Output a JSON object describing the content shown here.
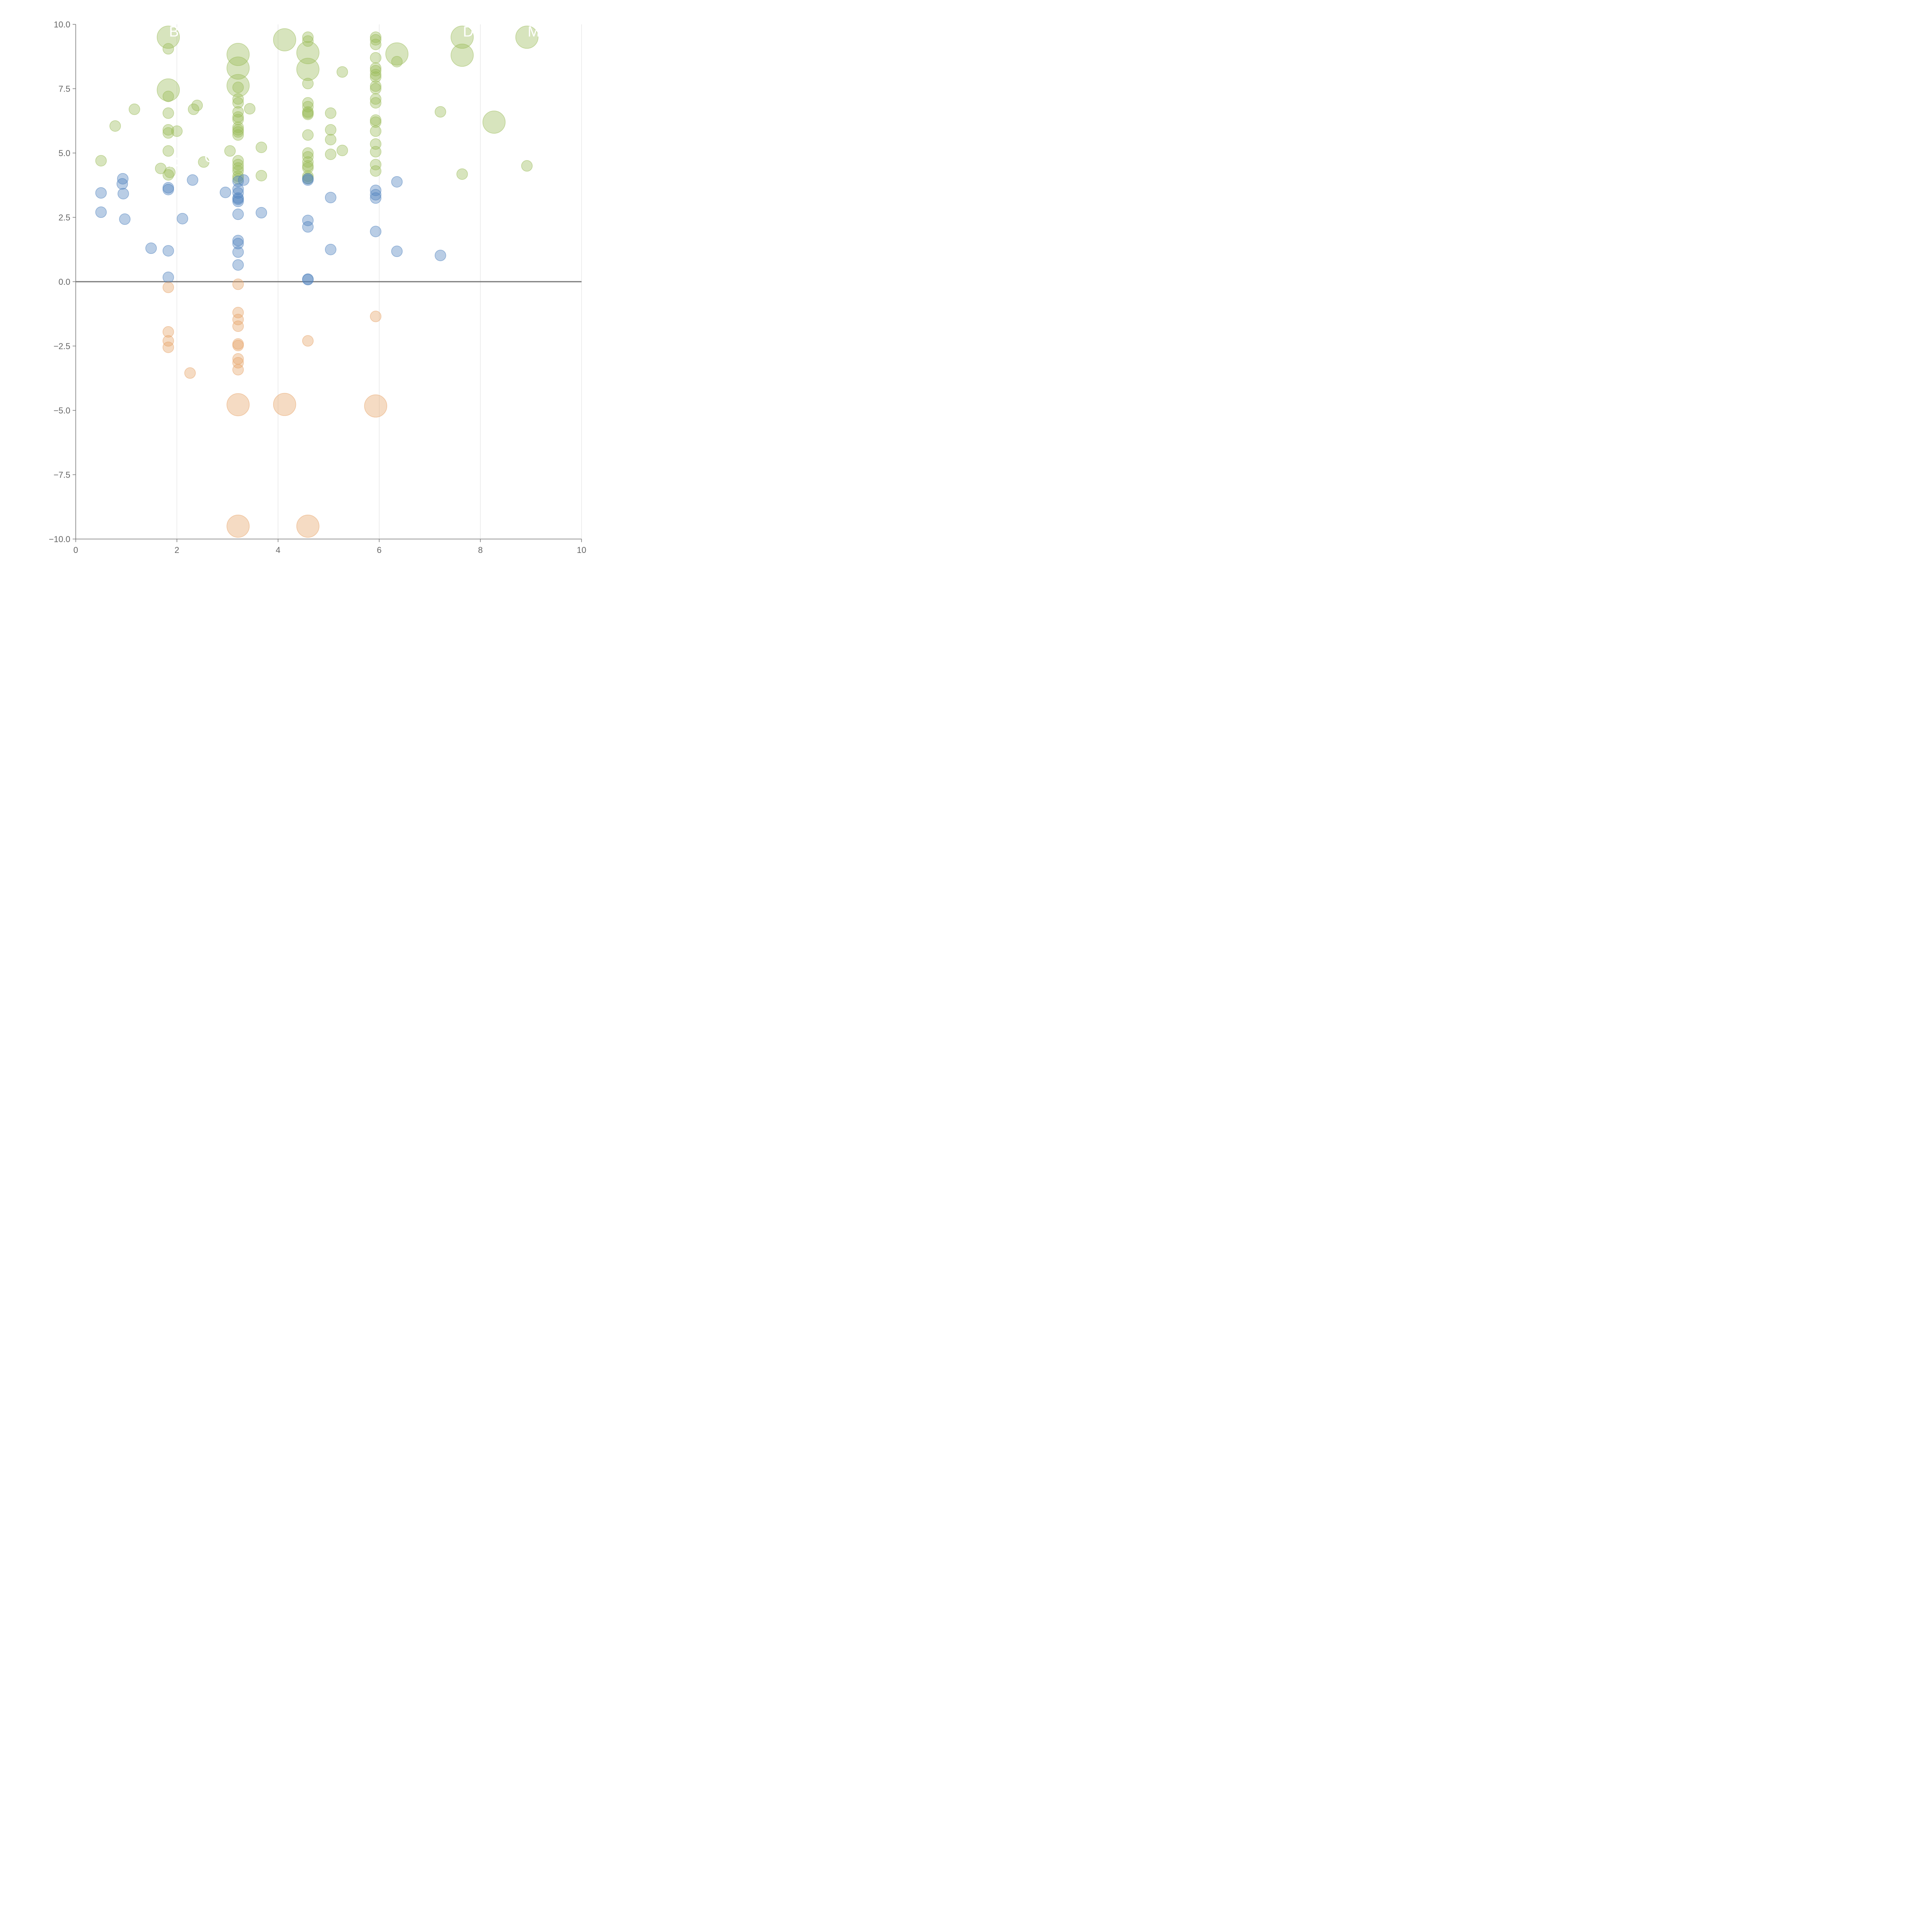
{
  "chart_data": {
    "type": "scatter",
    "title": "",
    "xlabel": "",
    "ylabel": "",
    "xlim": [
      0,
      10
    ],
    "ylim": [
      -10,
      10
    ],
    "x_ticks": [
      0,
      2,
      4,
      6,
      8,
      10
    ],
    "y_ticks": [
      -10,
      -7.5,
      -5,
      -2.5,
      0,
      2.5,
      5,
      7.5,
      10
    ],
    "x_tick_labels": [
      "0",
      "2",
      "4",
      "6",
      "8",
      "10"
    ],
    "y_tick_labels": [
      "−10.0",
      "−7.5",
      "−5.0",
      "−2.5",
      "0.0",
      "2.5",
      "5.0",
      "7.5",
      "10.0"
    ],
    "vertical_grid": true,
    "zero_line": true,
    "legend": "none",
    "series": [
      {
        "color": "#9bbb59",
        "points": [
          {
            "x": 1.83,
            "y": 9.5,
            "size": 3
          },
          {
            "x": 1.83,
            "y": 9.05,
            "size": 1
          },
          {
            "x": 1.83,
            "y": 7.45,
            "size": 3
          },
          {
            "x": 1.83,
            "y": 7.2,
            "size": 1
          },
          {
            "x": 1.83,
            "y": 6.55,
            "size": 1
          },
          {
            "x": 1.83,
            "y": 5.9,
            "size": 1
          },
          {
            "x": 1.83,
            "y": 5.78,
            "size": 1
          },
          {
            "x": 1.83,
            "y": 5.08,
            "size": 1
          },
          {
            "x": 1.83,
            "y": 4.15,
            "size": 1
          },
          {
            "x": 1.86,
            "y": 4.25,
            "size": 1
          },
          {
            "x": 2.0,
            "y": 5.85,
            "size": 1
          },
          {
            "x": 1.68,
            "y": 4.4,
            "size": 1
          },
          {
            "x": 0.5,
            "y": 4.7,
            "size": 1
          },
          {
            "x": 0.78,
            "y": 6.05,
            "size": 1
          },
          {
            "x": 1.16,
            "y": 6.7,
            "size": 1
          },
          {
            "x": 2.33,
            "y": 6.7,
            "size": 1
          },
          {
            "x": 2.4,
            "y": 6.85,
            "size": 1
          },
          {
            "x": 2.53,
            "y": 4.65,
            "size": 1
          },
          {
            "x": 3.05,
            "y": 5.08,
            "size": 1
          },
          {
            "x": 3.21,
            "y": 8.83,
            "size": 3
          },
          {
            "x": 3.21,
            "y": 8.3,
            "size": 3
          },
          {
            "x": 3.21,
            "y": 7.62,
            "size": 3
          },
          {
            "x": 3.21,
            "y": 7.55,
            "size": 1
          },
          {
            "x": 3.21,
            "y": 7.1,
            "size": 1
          },
          {
            "x": 3.21,
            "y": 6.95,
            "size": 1
          },
          {
            "x": 3.21,
            "y": 6.6,
            "size": 1
          },
          {
            "x": 3.21,
            "y": 6.4,
            "size": 1
          },
          {
            "x": 3.21,
            "y": 6.3,
            "size": 1
          },
          {
            "x": 3.21,
            "y": 6.0,
            "size": 1
          },
          {
            "x": 3.21,
            "y": 5.9,
            "size": 1
          },
          {
            "x": 3.21,
            "y": 5.82,
            "size": 1
          },
          {
            "x": 3.21,
            "y": 5.7,
            "size": 1
          },
          {
            "x": 3.21,
            "y": 4.7,
            "size": 1
          },
          {
            "x": 3.21,
            "y": 4.55,
            "size": 1
          },
          {
            "x": 3.21,
            "y": 4.42,
            "size": 1
          },
          {
            "x": 3.21,
            "y": 4.3,
            "size": 1
          },
          {
            "x": 3.21,
            "y": 4.1,
            "size": 1
          },
          {
            "x": 3.21,
            "y": 4.0,
            "size": 1
          },
          {
            "x": 3.44,
            "y": 6.72,
            "size": 1
          },
          {
            "x": 3.67,
            "y": 5.22,
            "size": 1
          },
          {
            "x": 3.67,
            "y": 4.12,
            "size": 1
          },
          {
            "x": 4.13,
            "y": 9.4,
            "size": 3
          },
          {
            "x": 4.59,
            "y": 9.5,
            "size": 1
          },
          {
            "x": 4.59,
            "y": 9.35,
            "size": 1
          },
          {
            "x": 4.59,
            "y": 8.9,
            "size": 3
          },
          {
            "x": 4.59,
            "y": 8.25,
            "size": 3
          },
          {
            "x": 4.59,
            "y": 7.7,
            "size": 1
          },
          {
            "x": 4.59,
            "y": 6.95,
            "size": 1
          },
          {
            "x": 4.59,
            "y": 6.8,
            "size": 1
          },
          {
            "x": 4.59,
            "y": 6.6,
            "size": 1
          },
          {
            "x": 4.59,
            "y": 6.55,
            "size": 1
          },
          {
            "x": 4.59,
            "y": 6.5,
            "size": 1
          },
          {
            "x": 4.59,
            "y": 5.7,
            "size": 1
          },
          {
            "x": 4.59,
            "y": 5.0,
            "size": 1
          },
          {
            "x": 4.59,
            "y": 4.85,
            "size": 1
          },
          {
            "x": 4.59,
            "y": 4.65,
            "size": 1
          },
          {
            "x": 4.59,
            "y": 4.5,
            "size": 1
          },
          {
            "x": 4.59,
            "y": 4.42,
            "size": 1
          },
          {
            "x": 4.59,
            "y": 4.1,
            "size": 1
          },
          {
            "x": 4.59,
            "y": 4.02,
            "size": 1
          },
          {
            "x": 5.04,
            "y": 6.55,
            "size": 1
          },
          {
            "x": 5.04,
            "y": 5.9,
            "size": 1
          },
          {
            "x": 5.04,
            "y": 5.52,
            "size": 1
          },
          {
            "x": 5.04,
            "y": 4.95,
            "size": 1
          },
          {
            "x": 5.27,
            "y": 8.15,
            "size": 1
          },
          {
            "x": 5.27,
            "y": 5.1,
            "size": 1
          },
          {
            "x": 5.93,
            "y": 9.5,
            "size": 1
          },
          {
            "x": 5.93,
            "y": 9.4,
            "size": 1
          },
          {
            "x": 5.93,
            "y": 9.22,
            "size": 1
          },
          {
            "x": 5.93,
            "y": 8.7,
            "size": 1
          },
          {
            "x": 5.93,
            "y": 8.3,
            "size": 1
          },
          {
            "x": 5.93,
            "y": 8.2,
            "size": 1
          },
          {
            "x": 5.93,
            "y": 8.05,
            "size": 1
          },
          {
            "x": 5.93,
            "y": 7.95,
            "size": 1
          },
          {
            "x": 5.93,
            "y": 7.6,
            "size": 1
          },
          {
            "x": 5.93,
            "y": 7.5,
            "size": 1
          },
          {
            "x": 5.93,
            "y": 7.1,
            "size": 1
          },
          {
            "x": 5.93,
            "y": 6.95,
            "size": 1
          },
          {
            "x": 5.93,
            "y": 6.28,
            "size": 1
          },
          {
            "x": 5.93,
            "y": 6.2,
            "size": 1
          },
          {
            "x": 5.93,
            "y": 5.85,
            "size": 1
          },
          {
            "x": 5.93,
            "y": 5.35,
            "size": 1
          },
          {
            "x": 5.93,
            "y": 5.05,
            "size": 1
          },
          {
            "x": 5.93,
            "y": 4.55,
            "size": 1
          },
          {
            "x": 5.93,
            "y": 4.3,
            "size": 1
          },
          {
            "x": 6.35,
            "y": 8.85,
            "size": 3
          },
          {
            "x": 6.35,
            "y": 8.55,
            "size": 1
          },
          {
            "x": 7.21,
            "y": 6.6,
            "size": 1
          },
          {
            "x": 7.64,
            "y": 9.5,
            "size": 3
          },
          {
            "x": 7.64,
            "y": 8.8,
            "size": 3
          },
          {
            "x": 7.64,
            "y": 4.18,
            "size": 1
          },
          {
            "x": 8.27,
            "y": 6.2,
            "size": 3
          },
          {
            "x": 8.92,
            "y": 9.5,
            "size": 3
          },
          {
            "x": 8.92,
            "y": 4.5,
            "size": 1
          }
        ]
      },
      {
        "color": "#4f81bd",
        "points": [
          {
            "x": 0.5,
            "y": 3.45,
            "size": 1
          },
          {
            "x": 0.5,
            "y": 2.7,
            "size": 1
          },
          {
            "x": 0.93,
            "y": 4.0,
            "size": 1
          },
          {
            "x": 0.92,
            "y": 3.8,
            "size": 1
          },
          {
            "x": 0.94,
            "y": 3.42,
            "size": 1
          },
          {
            "x": 0.97,
            "y": 2.43,
            "size": 1
          },
          {
            "x": 1.49,
            "y": 1.3,
            "size": 1
          },
          {
            "x": 1.83,
            "y": 3.65,
            "size": 1
          },
          {
            "x": 1.83,
            "y": 3.58,
            "size": 1
          },
          {
            "x": 1.83,
            "y": 1.2,
            "size": 1
          },
          {
            "x": 1.83,
            "y": 0.17,
            "size": 1
          },
          {
            "x": 2.11,
            "y": 2.45,
            "size": 1
          },
          {
            "x": 2.31,
            "y": 3.95,
            "size": 1
          },
          {
            "x": 2.96,
            "y": 3.47,
            "size": 1
          },
          {
            "x": 3.21,
            "y": 3.9,
            "size": 1
          },
          {
            "x": 3.21,
            "y": 3.6,
            "size": 1
          },
          {
            "x": 3.21,
            "y": 3.45,
            "size": 1
          },
          {
            "x": 3.21,
            "y": 3.25,
            "size": 1
          },
          {
            "x": 3.21,
            "y": 3.2,
            "size": 1
          },
          {
            "x": 3.21,
            "y": 3.12,
            "size": 1
          },
          {
            "x": 3.21,
            "y": 2.62,
            "size": 1
          },
          {
            "x": 3.21,
            "y": 1.6,
            "size": 1
          },
          {
            "x": 3.21,
            "y": 1.48,
            "size": 1
          },
          {
            "x": 3.21,
            "y": 1.15,
            "size": 1
          },
          {
            "x": 3.21,
            "y": 0.65,
            "size": 1
          },
          {
            "x": 3.32,
            "y": 3.95,
            "size": 1
          },
          {
            "x": 3.67,
            "y": 2.68,
            "size": 1
          },
          {
            "x": 4.59,
            "y": 4.0,
            "size": 1
          },
          {
            "x": 4.59,
            "y": 3.95,
            "size": 1
          },
          {
            "x": 4.59,
            "y": 2.38,
            "size": 1
          },
          {
            "x": 4.59,
            "y": 2.13,
            "size": 1
          },
          {
            "x": 4.59,
            "y": 0.1,
            "size": 1
          },
          {
            "x": 4.59,
            "y": 0.08,
            "size": 1
          },
          {
            "x": 5.04,
            "y": 3.27,
            "size": 1
          },
          {
            "x": 5.04,
            "y": 1.25,
            "size": 1
          },
          {
            "x": 5.93,
            "y": 3.55,
            "size": 1
          },
          {
            "x": 5.93,
            "y": 3.38,
            "size": 1
          },
          {
            "x": 5.93,
            "y": 3.25,
            "size": 1
          },
          {
            "x": 5.93,
            "y": 1.95,
            "size": 1
          },
          {
            "x": 6.35,
            "y": 3.88,
            "size": 1
          },
          {
            "x": 6.35,
            "y": 1.18,
            "size": 1
          },
          {
            "x": 7.21,
            "y": 1.02,
            "size": 1
          }
        ]
      },
      {
        "color": "#e7a46a",
        "points": [
          {
            "x": 1.83,
            "y": -0.22,
            "size": 1
          },
          {
            "x": 1.83,
            "y": -1.95,
            "size": 1
          },
          {
            "x": 1.83,
            "y": -2.3,
            "size": 1
          },
          {
            "x": 1.83,
            "y": -2.55,
            "size": 1
          },
          {
            "x": 2.26,
            "y": -3.55,
            "size": 1
          },
          {
            "x": 3.21,
            "y": -0.1,
            "size": 1
          },
          {
            "x": 3.21,
            "y": -1.2,
            "size": 1
          },
          {
            "x": 3.21,
            "y": -1.47,
            "size": 1
          },
          {
            "x": 3.21,
            "y": -1.73,
            "size": 1
          },
          {
            "x": 3.21,
            "y": -2.42,
            "size": 1
          },
          {
            "x": 3.21,
            "y": -2.48,
            "size": 1
          },
          {
            "x": 3.21,
            "y": -3.0,
            "size": 1
          },
          {
            "x": 3.21,
            "y": -3.15,
            "size": 1
          },
          {
            "x": 3.21,
            "y": -3.42,
            "size": 1
          },
          {
            "x": 3.21,
            "y": -4.78,
            "size": 3
          },
          {
            "x": 4.13,
            "y": -4.77,
            "size": 3
          },
          {
            "x": 4.59,
            "y": -2.3,
            "size": 1
          },
          {
            "x": 5.93,
            "y": -1.35,
            "size": 1
          },
          {
            "x": 5.93,
            "y": -4.83,
            "size": 3
          },
          {
            "x": 3.21,
            "y": -9.5,
            "size": 3
          },
          {
            "x": 4.59,
            "y": -9.5,
            "size": 3
          }
        ]
      }
    ],
    "point_labels": [
      {
        "text": "B",
        "x": 1.83,
        "y": 9.5
      },
      {
        "text": "D",
        "x": 7.64,
        "y": 9.5
      },
      {
        "text": "MP",
        "x": 8.92,
        "y": 9.5
      },
      {
        "text": "DA",
        "x": 1.83,
        "y": 4.42
      },
      {
        "text": "GB",
        "x": 2.53,
        "y": 4.62
      }
    ]
  }
}
